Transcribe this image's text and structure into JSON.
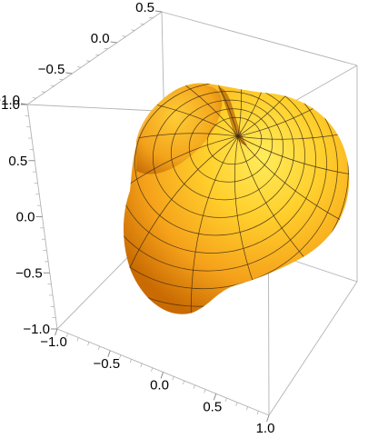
{
  "chart_data": {
    "type": "surface3d",
    "title": "",
    "xlabel": "",
    "ylabel": "",
    "zlabel": "",
    "xlim": [
      -1.0,
      1.0
    ],
    "ylim": [
      -1.0,
      0.5
    ],
    "zlim": [
      -1.0,
      1.0
    ],
    "x_ticks": [
      "−1.0",
      "−0.5",
      "0.0",
      "0.5",
      "1.0"
    ],
    "y_ticks": [
      "−1.0",
      "−0.5",
      "0.0",
      "0.5"
    ],
    "z_ticks": [
      "1.0",
      "0.5",
      "0.0",
      "−0.5",
      "−1.0"
    ],
    "bounding_box": true,
    "mesh": true,
    "colors": {
      "surface_highlight": "#ffe14a",
      "surface_mid": "#f8ac1e",
      "surface_shadow": "#c86a00",
      "mesh": "#3d2a12",
      "box": "#b3b3b3"
    }
  }
}
